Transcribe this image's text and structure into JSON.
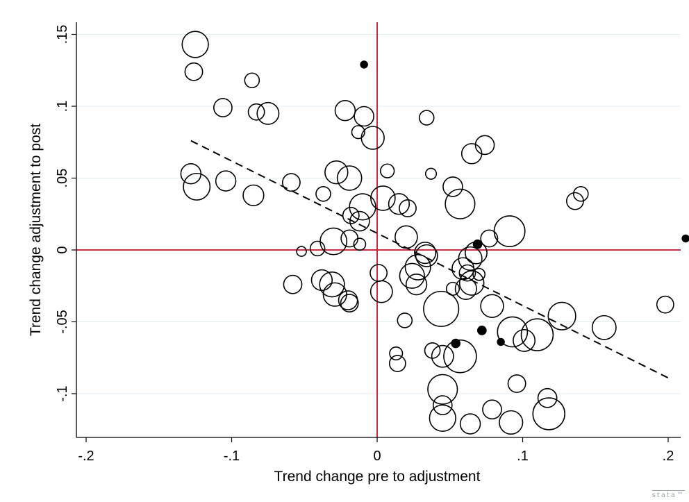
{
  "chart_data": {
    "type": "scatter",
    "title": "",
    "xlabel": "Trend change pre to adjustment",
    "ylabel": "Trend change adjustment to post",
    "xlim": [
      -0.2,
      0.2
    ],
    "ylim": [
      -0.13,
      0.15
    ],
    "xticks": [
      {
        "value": -0.2,
        "label": "-.2"
      },
      {
        "value": -0.1,
        "label": "-.1"
      },
      {
        "value": 0,
        "label": "0"
      },
      {
        "value": 0.1,
        "label": ".1"
      },
      {
        "value": 0.2,
        "label": ".2"
      }
    ],
    "yticks": [
      {
        "value": -0.1,
        "label": "-.1"
      },
      {
        "value": -0.05,
        "label": "-.05"
      },
      {
        "value": 0,
        "label": "0"
      },
      {
        "value": 0.05,
        "label": ".05"
      },
      {
        "value": 0.1,
        "label": ".1"
      },
      {
        "value": 0.15,
        "label": ".15"
      }
    ],
    "grid": "horizontal",
    "reference_lines": {
      "x": 0,
      "y": 0,
      "color": "#c8102e"
    },
    "fit_line": {
      "style": "dashed",
      "x": [
        -0.128,
        0.2
      ],
      "y": [
        0.076,
        -0.089
      ]
    },
    "marker_color": "#000000",
    "points": [
      {
        "x": -0.125,
        "y": 0.143,
        "w": 29
      },
      {
        "x": -0.126,
        "y": 0.124,
        "w": 13
      },
      {
        "x": -0.086,
        "y": 0.118,
        "w": 9
      },
      {
        "x": -0.106,
        "y": 0.099,
        "w": 14
      },
      {
        "x": -0.083,
        "y": 0.096,
        "w": 11
      },
      {
        "x": -0.075,
        "y": 0.095,
        "w": 20
      },
      {
        "x": -0.128,
        "y": 0.053,
        "w": 17
      },
      {
        "x": -0.124,
        "y": 0.044,
        "w": 30
      },
      {
        "x": -0.104,
        "y": 0.048,
        "w": 17
      },
      {
        "x": -0.085,
        "y": 0.038,
        "w": 18
      },
      {
        "x": -0.059,
        "y": 0.047,
        "w": 13
      },
      {
        "x": -0.037,
        "y": 0.039,
        "w": 9
      },
      {
        "x": -0.009,
        "y": 0.129,
        "w": 2
      },
      {
        "x": -0.022,
        "y": 0.097,
        "w": 17
      },
      {
        "x": -0.009,
        "y": 0.093,
        "w": 16
      },
      {
        "x": -0.013,
        "y": 0.082,
        "w": 7
      },
      {
        "x": -0.003,
        "y": 0.078,
        "w": 22
      },
      {
        "x": -0.028,
        "y": 0.054,
        "w": 22
      },
      {
        "x": -0.019,
        "y": 0.05,
        "w": 25
      },
      {
        "x": -0.01,
        "y": 0.03,
        "w": 29
      },
      {
        "x": 0.004,
        "y": 0.036,
        "w": 25
      },
      {
        "x": -0.018,
        "y": 0.024,
        "w": 11
      },
      {
        "x": -0.012,
        "y": 0.02,
        "w": 16
      },
      {
        "x": -0.03,
        "y": 0.006,
        "w": 30
      },
      {
        "x": -0.019,
        "y": 0.008,
        "w": 12
      },
      {
        "x": -0.012,
        "y": 0.004,
        "w": 6
      },
      {
        "x": -0.052,
        "y": -0.001,
        "w": 4
      },
      {
        "x": -0.041,
        "y": 0.001,
        "w": 9
      },
      {
        "x": 0.007,
        "y": 0.055,
        "w": 8
      },
      {
        "x": 0.015,
        "y": 0.032,
        "w": 18
      },
      {
        "x": 0.021,
        "y": 0.029,
        "w": 12
      },
      {
        "x": 0.034,
        "y": 0.092,
        "w": 9
      },
      {
        "x": 0.037,
        "y": 0.053,
        "w": 5
      },
      {
        "x": 0.052,
        "y": 0.044,
        "w": 16
      },
      {
        "x": 0.057,
        "y": 0.032,
        "w": 37
      },
      {
        "x": 0.065,
        "y": 0.067,
        "w": 17
      },
      {
        "x": 0.074,
        "y": 0.073,
        "w": 15
      },
      {
        "x": 0.091,
        "y": 0.013,
        "w": 40
      },
      {
        "x": 0.077,
        "y": 0.008,
        "w": 12
      },
      {
        "x": 0.136,
        "y": 0.034,
        "w": 12
      },
      {
        "x": 0.14,
        "y": 0.039,
        "w": 9
      },
      {
        "x": 0.212,
        "y": 0.008,
        "w": 2
      },
      {
        "x": 0.02,
        "y": 0.009,
        "w": 21
      },
      {
        "x": 0.033,
        "y": -0.002,
        "w": 19
      },
      {
        "x": 0.034,
        "y": -0.004,
        "w": 20
      },
      {
        "x": 0.028,
        "y": -0.012,
        "w": 27
      },
      {
        "x": 0.024,
        "y": -0.018,
        "w": 26
      },
      {
        "x": 0.027,
        "y": -0.024,
        "w": 18
      },
      {
        "x": -0.038,
        "y": -0.021,
        "w": 18
      },
      {
        "x": -0.031,
        "y": -0.024,
        "w": 26
      },
      {
        "x": -0.029,
        "y": -0.031,
        "w": 23
      },
      {
        "x": -0.02,
        "y": -0.035,
        "w": 15
      },
      {
        "x": -0.019,
        "y": -0.037,
        "w": 13
      },
      {
        "x": -0.058,
        "y": -0.024,
        "w": 14
      },
      {
        "x": 0.001,
        "y": -0.016,
        "w": 12
      },
      {
        "x": 0.003,
        "y": -0.029,
        "w": 20
      },
      {
        "x": 0.044,
        "y": -0.041,
        "w": 52
      },
      {
        "x": 0.052,
        "y": -0.027,
        "w": 7
      },
      {
        "x": 0.059,
        "y": -0.013,
        "w": 20
      },
      {
        "x": 0.064,
        "y": -0.006,
        "w": 23
      },
      {
        "x": 0.068,
        "y": -0.002,
        "w": 20
      },
      {
        "x": 0.069,
        "y": 0.004,
        "w": 3
      },
      {
        "x": 0.062,
        "y": -0.016,
        "w": 11
      },
      {
        "x": 0.061,
        "y": -0.027,
        "w": 19
      },
      {
        "x": 0.07,
        "y": -0.017,
        "w": 6
      },
      {
        "x": 0.065,
        "y": -0.023,
        "w": 25
      },
      {
        "x": 0.079,
        "y": -0.039,
        "w": 22
      },
      {
        "x": 0.093,
        "y": -0.057,
        "w": 38
      },
      {
        "x": 0.11,
        "y": -0.059,
        "w": 43
      },
      {
        "x": 0.127,
        "y": -0.046,
        "w": 32
      },
      {
        "x": 0.101,
        "y": -0.063,
        "w": 20
      },
      {
        "x": 0.156,
        "y": -0.054,
        "w": 24
      },
      {
        "x": 0.198,
        "y": -0.038,
        "w": 12
      },
      {
        "x": 0.019,
        "y": -0.049,
        "w": 9
      },
      {
        "x": 0.013,
        "y": -0.072,
        "w": 7
      },
      {
        "x": 0.014,
        "y": -0.079,
        "w": 11
      },
      {
        "x": 0.038,
        "y": -0.07,
        "w": 10
      },
      {
        "x": 0.045,
        "y": -0.074,
        "w": 20
      },
      {
        "x": 0.054,
        "y": -0.065,
        "w": 3
      },
      {
        "x": 0.057,
        "y": -0.074,
        "w": 45
      },
      {
        "x": 0.072,
        "y": -0.056,
        "w": 3
      },
      {
        "x": 0.085,
        "y": -0.064,
        "w": 2
      },
      {
        "x": 0.045,
        "y": -0.097,
        "w": 37
      },
      {
        "x": 0.045,
        "y": -0.108,
        "w": 15
      },
      {
        "x": 0.045,
        "y": -0.117,
        "w": 29
      },
      {
        "x": 0.064,
        "y": -0.121,
        "w": 17
      },
      {
        "x": 0.079,
        "y": -0.111,
        "w": 15
      },
      {
        "x": 0.092,
        "y": -0.12,
        "w": 23
      },
      {
        "x": 0.096,
        "y": -0.093,
        "w": 13
      },
      {
        "x": 0.117,
        "y": -0.103,
        "w": 15
      },
      {
        "x": 0.118,
        "y": -0.114,
        "w": 43
      }
    ]
  }
}
